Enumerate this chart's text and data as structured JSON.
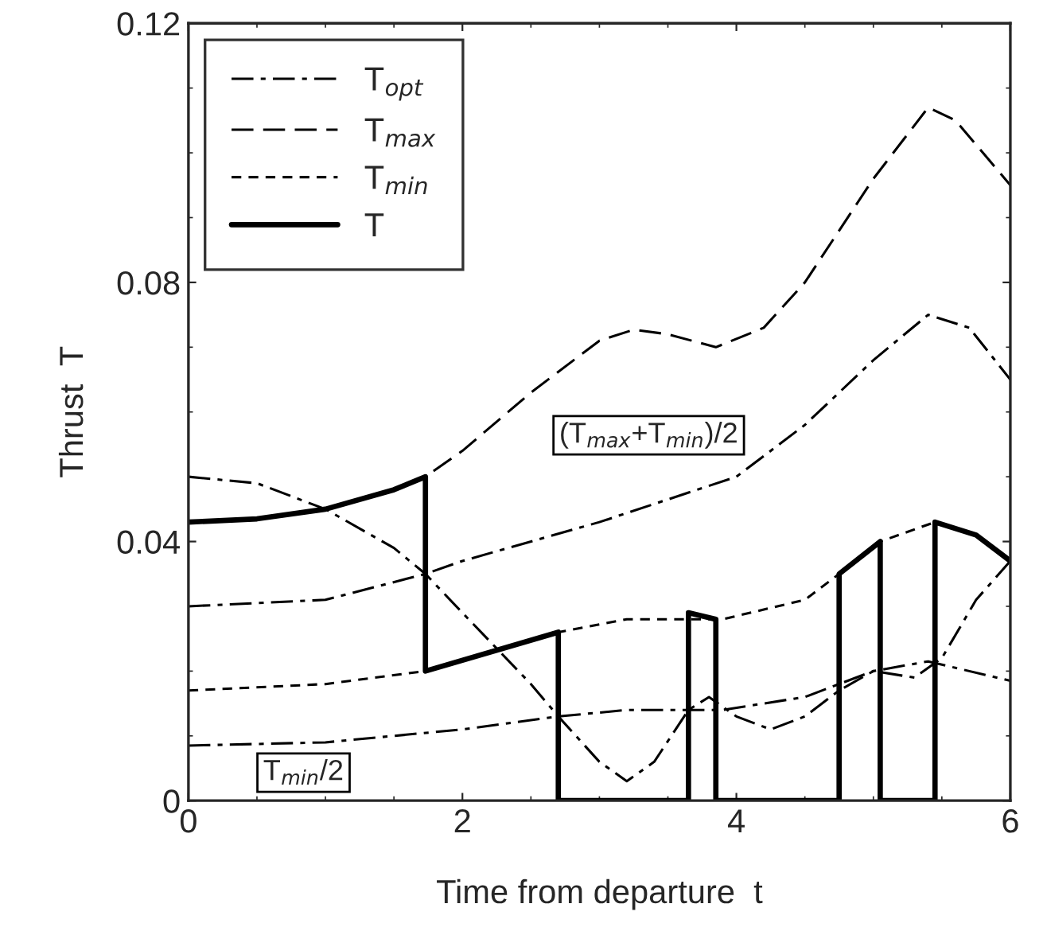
{
  "chart_data": {
    "type": "line",
    "xlabel": "Time from departure  t",
    "ylabel": "Thrust  T",
    "xlim": [
      0,
      6
    ],
    "ylim": [
      0,
      0.12
    ],
    "xticks": [
      0,
      2,
      4,
      6
    ],
    "yticks": [
      0,
      0.04,
      0.08,
      0.12
    ],
    "grid": false,
    "legend": "top left",
    "marker": "none",
    "series": [
      {
        "name": "T$_{opt}$",
        "color": "#000000",
        "line_style": "dashdot",
        "x": [
          0,
          0.5,
          1,
          1.5,
          1.73,
          2,
          2.5,
          2.7,
          3,
          3.2,
          3.4,
          3.65,
          3.8,
          4.0,
          4.25,
          4.5,
          4.75,
          5.0,
          5.3,
          5.5,
          5.75,
          6
        ],
        "values": [
          0.05,
          0.049,
          0.045,
          0.039,
          0.035,
          0.029,
          0.018,
          0.013,
          0.006,
          0.003,
          0.006,
          0.014,
          0.016,
          0.013,
          0.011,
          0.013,
          0.017,
          0.02,
          0.019,
          0.022,
          0.031,
          0.037
        ]
      },
      {
        "name": "T$_{max}$",
        "color": "#000000",
        "line_style": "dashed",
        "x": [
          0,
          0.5,
          1,
          1.5,
          1.73,
          2,
          2.5,
          3,
          3.25,
          3.5,
          3.85,
          4.2,
          4.5,
          5,
          5.4,
          5.6,
          5.8,
          6
        ],
        "values": [
          0.043,
          0.0435,
          0.045,
          0.048,
          0.05,
          0.054,
          0.063,
          0.071,
          0.0727,
          0.072,
          0.07,
          0.073,
          0.08,
          0.096,
          0.107,
          0.105,
          0.1,
          0.095
        ]
      },
      {
        "name": "T$_{min}$",
        "color": "#000000",
        "line_style": "dotted",
        "x": [
          0,
          1,
          1.73,
          2.7,
          3.2,
          3.65,
          3.9,
          4.5,
          4.75,
          5.05,
          5.45,
          5.75,
          6
        ],
        "values": [
          0.017,
          0.018,
          0.02,
          0.026,
          0.028,
          0.028,
          0.028,
          0.031,
          0.035,
          0.04,
          0.043,
          0.041,
          0.037
        ]
      },
      {
        "name": "T",
        "color": "#000000",
        "line_style": "solid",
        "x": [
          0,
          0.5,
          1,
          1.5,
          1.73,
          1.73,
          2.7,
          2.7,
          3.65,
          3.65,
          3.85,
          3.85,
          4.75,
          4.75,
          5.05,
          5.05,
          5.45,
          5.45,
          5.75,
          6
        ],
        "values": [
          0.043,
          0.0435,
          0.045,
          0.048,
          0.05,
          0.02,
          0.026,
          0,
          0,
          0.029,
          0.028,
          0,
          0,
          0.035,
          0.04,
          0,
          0,
          0.043,
          0.041,
          0.037
        ]
      },
      {
        "color": "#000000",
        "line_style": "dashdot",
        "x": [
          0,
          1,
          1.73,
          2,
          3,
          4,
          4.5,
          5,
          5.4,
          5.7,
          6
        ],
        "values": [
          0.03,
          0.031,
          0.035,
          0.037,
          0.043,
          0.05,
          0.058,
          0.068,
          0.075,
          0.073,
          0.065
        ]
      },
      {
        "color": "#000000",
        "line_style": "dashdot",
        "x": [
          0,
          1,
          2,
          2.7,
          3.2,
          3.9,
          4.5,
          5,
          5.4,
          6
        ],
        "values": [
          0.0085,
          0.009,
          0.011,
          0.013,
          0.014,
          0.014,
          0.016,
          0.02,
          0.0215,
          0.0185
        ]
      }
    ],
    "annotations": [
      "(T$_{max}$+T$_{min}$)/2",
      "T$_{min}$/2"
    ]
  }
}
